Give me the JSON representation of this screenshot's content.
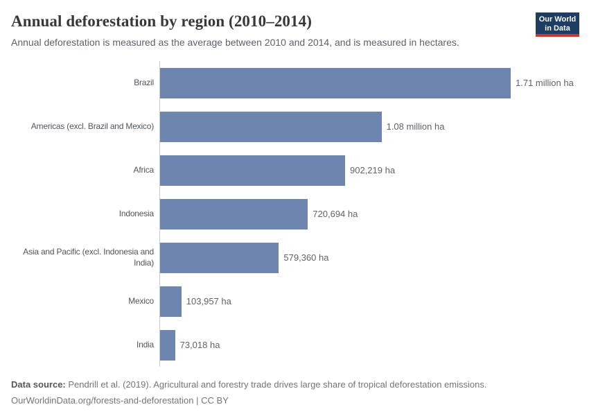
{
  "header": {
    "title": "Annual deforestation by region (2010–2014)",
    "subtitle": "Annual deforestation is measured as the average between 2010 and 2014, and is measured in hectares.",
    "logo": {
      "line1": "Our World",
      "line2": "in Data",
      "background_color": "#1d3d63",
      "accent_color": "#cf342e"
    }
  },
  "chart_data": {
    "type": "bar",
    "orientation": "horizontal",
    "title": "Annual deforestation by region (2010–2014)",
    "unit": "hectares",
    "grid": false,
    "xlim": [
      0,
      1710000
    ],
    "categories": [
      "Brazil",
      "Americas (excl. Brazil and Mexico)",
      "Africa",
      "Indonesia",
      "Asia and Pacific (excl. Indonesia and\nIndia)",
      "Mexico",
      "India"
    ],
    "values": [
      1710000,
      1080000,
      902219,
      720694,
      579360,
      103957,
      73018
    ],
    "value_labels": [
      "1.71 million ha",
      "1.08 million ha",
      "902,219 ha",
      "720,694 ha",
      "579,360 ha",
      "103,957 ha",
      "73,018 ha"
    ],
    "bar_color": "#6e86af"
  },
  "footer": {
    "source_prefix": "Data source:",
    "source_text": " Pendrill et al. (2019). Agricultural and forestry trade drives large share of tropical deforestation emissions.",
    "link_text": "OurWorldinData.org/forests-and-deforestation | CC BY"
  }
}
